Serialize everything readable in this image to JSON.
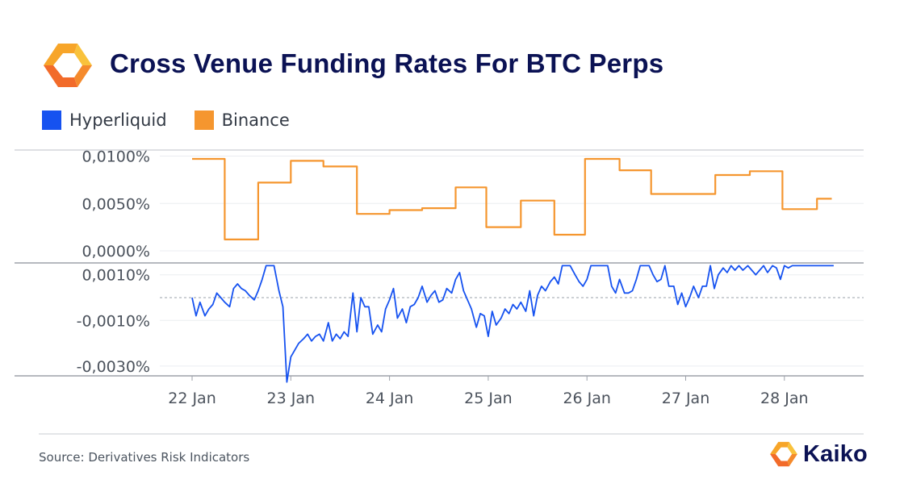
{
  "header": {
    "title": "Cross Venue Funding Rates For BTC Perps"
  },
  "legend": [
    {
      "label": "Hyperliquid",
      "color": "#1652f0"
    },
    {
      "label": "Binance",
      "color": "#f5962f"
    }
  ],
  "footer": {
    "source": "Source: Derivatives Risk Indicators",
    "brand": "Kaiko"
  },
  "chart_data": {
    "type": "line",
    "x_unit": "days",
    "x_ticks": [
      {
        "x": 22,
        "label": "22 Jan"
      },
      {
        "x": 23,
        "label": "23 Jan"
      },
      {
        "x": 24,
        "label": "24 Jan"
      },
      {
        "x": 25,
        "label": "25 Jan"
      },
      {
        "x": 26,
        "label": "26 Jan"
      },
      {
        "x": 27,
        "label": "27 Jan"
      },
      {
        "x": 28,
        "label": "28 Jan"
      }
    ],
    "panels": [
      {
        "series": "Binance",
        "ylim": [
          0,
          0.0108
        ],
        "ticks": [
          {
            "value": 0.01,
            "label": "0,0100%"
          },
          {
            "value": 0.005,
            "label": "0,0050%"
          },
          {
            "value": 0,
            "label": "0,0000%"
          }
        ],
        "step": true,
        "points": [
          [
            22.0,
            0.0097
          ],
          [
            22.33,
            0.0097
          ],
          [
            22.33,
            0.0012
          ],
          [
            22.67,
            0.0012
          ],
          [
            22.67,
            0.0072
          ],
          [
            23.0,
            0.0072
          ],
          [
            23.0,
            0.0095
          ],
          [
            23.33,
            0.0095
          ],
          [
            23.33,
            0.0089
          ],
          [
            23.67,
            0.0089
          ],
          [
            23.67,
            0.0039
          ],
          [
            24.0,
            0.0039
          ],
          [
            24.0,
            0.0043
          ],
          [
            24.33,
            0.0043
          ],
          [
            24.33,
            0.0045
          ],
          [
            24.67,
            0.0045
          ],
          [
            24.67,
            0.0067
          ],
          [
            24.98,
            0.0067
          ],
          [
            24.98,
            0.0025
          ],
          [
            25.33,
            0.0025
          ],
          [
            25.33,
            0.0053
          ],
          [
            25.67,
            0.0053
          ],
          [
            25.67,
            0.0017
          ],
          [
            25.98,
            0.0017
          ],
          [
            25.98,
            0.0097
          ],
          [
            26.33,
            0.0097
          ],
          [
            26.33,
            0.0085
          ],
          [
            26.65,
            0.0085
          ],
          [
            26.65,
            0.006
          ],
          [
            27.3,
            0.006
          ],
          [
            27.3,
            0.008
          ],
          [
            27.65,
            0.008
          ],
          [
            27.65,
            0.0084
          ],
          [
            27.98,
            0.0084
          ],
          [
            27.98,
            0.0044
          ],
          [
            28.33,
            0.0044
          ],
          [
            28.33,
            0.0055
          ],
          [
            28.48,
            0.0055
          ]
        ]
      },
      {
        "series": "Hyperliquid",
        "ylim": [
          -0.0037,
          0.0013
        ],
        "ticks": [
          {
            "value": 0.001,
            "label": "0,0010%"
          },
          {
            "value": -0.001,
            "label": "-0,0010%"
          },
          {
            "value": -0.003,
            "label": "-0,0030%"
          }
        ],
        "zero_line": 0,
        "points": [
          [
            22.0,
            0.0
          ],
          [
            22.04,
            -0.0008
          ],
          [
            22.08,
            -0.0002
          ],
          [
            22.13,
            -0.0008
          ],
          [
            22.17,
            -0.0005
          ],
          [
            22.21,
            -0.0003
          ],
          [
            22.25,
            0.0002
          ],
          [
            22.29,
            0.0
          ],
          [
            22.33,
            -0.0002
          ],
          [
            22.38,
            -0.0004
          ],
          [
            22.42,
            0.0004
          ],
          [
            22.46,
            0.0006
          ],
          [
            22.5,
            0.0004
          ],
          [
            22.54,
            0.0003
          ],
          [
            22.58,
            0.0001
          ],
          [
            22.63,
            -0.0001
          ],
          [
            22.67,
            0.0003
          ],
          [
            22.71,
            0.0008
          ],
          [
            22.75,
            0.0014
          ],
          [
            22.83,
            0.0014
          ],
          [
            22.88,
            0.0003
          ],
          [
            22.92,
            -0.0004
          ],
          [
            22.96,
            -0.0037
          ],
          [
            23.0,
            -0.0026
          ],
          [
            23.04,
            -0.0023
          ],
          [
            23.08,
            -0.002
          ],
          [
            23.13,
            -0.0018
          ],
          [
            23.17,
            -0.0016
          ],
          [
            23.21,
            -0.0019
          ],
          [
            23.25,
            -0.0017
          ],
          [
            23.29,
            -0.0016
          ],
          [
            23.33,
            -0.0019
          ],
          [
            23.38,
            -0.0011
          ],
          [
            23.42,
            -0.0019
          ],
          [
            23.46,
            -0.0016
          ],
          [
            23.5,
            -0.0018
          ],
          [
            23.54,
            -0.0015
          ],
          [
            23.58,
            -0.0017
          ],
          [
            23.63,
            0.0002
          ],
          [
            23.67,
            -0.0015
          ],
          [
            23.71,
            0.0
          ],
          [
            23.75,
            -0.0004
          ],
          [
            23.79,
            -0.0004
          ],
          [
            23.83,
            -0.0016
          ],
          [
            23.88,
            -0.0012
          ],
          [
            23.92,
            -0.0015
          ],
          [
            23.96,
            -0.0005
          ],
          [
            24.0,
            -0.0001
          ],
          [
            24.04,
            0.0004
          ],
          [
            24.08,
            -0.0009
          ],
          [
            24.13,
            -0.0005
          ],
          [
            24.17,
            -0.0011
          ],
          [
            24.21,
            -0.0004
          ],
          [
            24.25,
            -0.0003
          ],
          [
            24.29,
            0.0
          ],
          [
            24.33,
            0.0005
          ],
          [
            24.38,
            -0.0002
          ],
          [
            24.42,
            0.0001
          ],
          [
            24.46,
            0.0003
          ],
          [
            24.5,
            -0.0002
          ],
          [
            24.54,
            -0.0001
          ],
          [
            24.58,
            0.0004
          ],
          [
            24.63,
            0.0002
          ],
          [
            24.67,
            0.0008
          ],
          [
            24.71,
            0.0011
          ],
          [
            24.75,
            0.0003
          ],
          [
            24.79,
            -0.0001
          ],
          [
            24.83,
            -0.0005
          ],
          [
            24.88,
            -0.0013
          ],
          [
            24.92,
            -0.0007
          ],
          [
            24.96,
            -0.0008
          ],
          [
            25.0,
            -0.0017
          ],
          [
            25.04,
            -0.0006
          ],
          [
            25.08,
            -0.0012
          ],
          [
            25.13,
            -0.0009
          ],
          [
            25.17,
            -0.0005
          ],
          [
            25.21,
            -0.0007
          ],
          [
            25.25,
            -0.0003
          ],
          [
            25.29,
            -0.0005
          ],
          [
            25.33,
            -0.0002
          ],
          [
            25.38,
            -0.0006
          ],
          [
            25.42,
            0.0003
          ],
          [
            25.46,
            -0.0008
          ],
          [
            25.5,
            0.0001
          ],
          [
            25.54,
            0.0005
          ],
          [
            25.58,
            0.0003
          ],
          [
            25.63,
            0.0007
          ],
          [
            25.67,
            0.0009
          ],
          [
            25.71,
            0.0006
          ],
          [
            25.75,
            0.0014
          ],
          [
            25.83,
            0.0014
          ],
          [
            25.88,
            0.001
          ],
          [
            25.92,
            0.0007
          ],
          [
            25.96,
            0.0005
          ],
          [
            26.0,
            0.0008
          ],
          [
            26.04,
            0.0014
          ],
          [
            26.21,
            0.0014
          ],
          [
            26.25,
            0.0005
          ],
          [
            26.29,
            0.0002
          ],
          [
            26.33,
            0.0008
          ],
          [
            26.38,
            0.0002
          ],
          [
            26.42,
            0.0002
          ],
          [
            26.46,
            0.0003
          ],
          [
            26.5,
            0.0008
          ],
          [
            26.54,
            0.0014
          ],
          [
            26.63,
            0.0014
          ],
          [
            26.67,
            0.001
          ],
          [
            26.71,
            0.0007
          ],
          [
            26.75,
            0.0008
          ],
          [
            26.79,
            0.0014
          ],
          [
            26.83,
            0.0005
          ],
          [
            26.88,
            0.0005
          ],
          [
            26.92,
            -0.0003
          ],
          [
            26.96,
            0.0002
          ],
          [
            27.0,
            -0.0004
          ],
          [
            27.04,
            0.0
          ],
          [
            27.08,
            0.0005
          ],
          [
            27.13,
            0.0
          ],
          [
            27.17,
            0.0005
          ],
          [
            27.21,
            0.0005
          ],
          [
            27.25,
            0.0014
          ],
          [
            27.29,
            0.0004
          ],
          [
            27.33,
            0.001
          ],
          [
            27.38,
            0.0013
          ],
          [
            27.42,
            0.0011
          ],
          [
            27.46,
            0.0014
          ],
          [
            27.5,
            0.0012
          ],
          [
            27.54,
            0.0014
          ],
          [
            27.58,
            0.0012
          ],
          [
            27.63,
            0.0014
          ],
          [
            27.67,
            0.0012
          ],
          [
            27.71,
            0.001
          ],
          [
            27.75,
            0.0012
          ],
          [
            27.79,
            0.0014
          ],
          [
            27.83,
            0.0011
          ],
          [
            27.88,
            0.0014
          ],
          [
            27.92,
            0.0013
          ],
          [
            27.96,
            0.0008
          ],
          [
            28.0,
            0.0014
          ],
          [
            28.04,
            0.0013
          ],
          [
            28.08,
            0.0014
          ],
          [
            28.5,
            0.0014
          ]
        ]
      }
    ]
  }
}
